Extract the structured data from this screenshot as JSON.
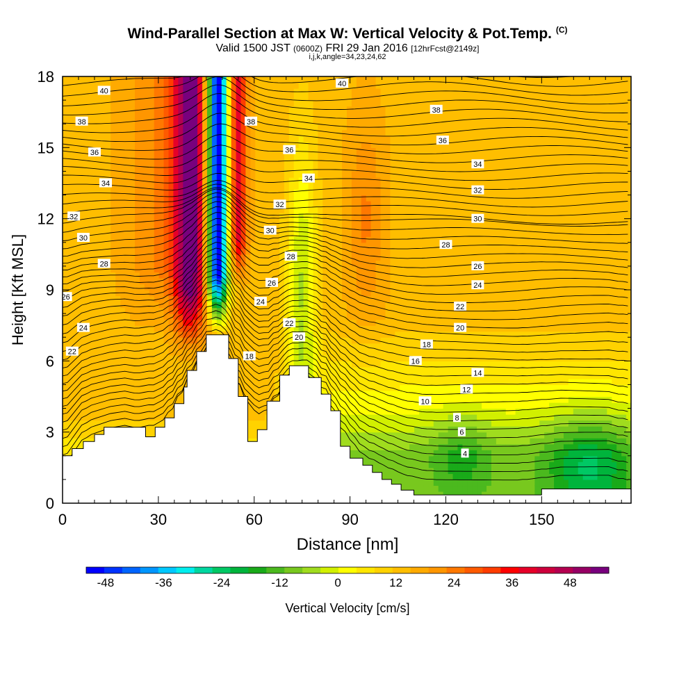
{
  "header": {
    "title": "Wind-Parallel Section at Max W: Vertical Velocity & Pot.Temp.",
    "title_mark": "(C)",
    "valid_prefix": "Valid 1500 JST",
    "valid_utc": "(0600Z)",
    "valid_date": "FRI 29 Jan 2016",
    "forecast": "[12hrFcst@2149z]",
    "section_params": "i,j,k,angle=34,23,24,62"
  },
  "chart_data": {
    "type": "heatmap",
    "xlabel": "Distance [nm]",
    "ylabel": "Height [Kft MSL]",
    "xlim": [
      0,
      178
    ],
    "ylim": [
      0,
      18
    ],
    "xticks": [
      "0",
      "30",
      "60",
      "90",
      "120",
      "150"
    ],
    "xtick_values": [
      0,
      30,
      60,
      90,
      120,
      150
    ],
    "yticks": [
      "0",
      "3",
      "6",
      "9",
      "12",
      "15",
      "18"
    ],
    "ytick_values": [
      0,
      3,
      6,
      9,
      12,
      15,
      18
    ],
    "colorbar": {
      "label": "Vertical Velocity [cm/s]",
      "tick_labels": [
        "-48",
        "-36",
        "-24",
        "-12",
        "0",
        "12",
        "24",
        "36",
        "48"
      ],
      "tick_values": [
        -48,
        -36,
        -24,
        -12,
        0,
        12,
        24,
        36,
        48
      ],
      "range": [
        -52,
        56
      ],
      "colors": [
        "#0000ff",
        "#0032ff",
        "#0064ff",
        "#0096ff",
        "#00c8ff",
        "#00eeee",
        "#00d7a0",
        "#00c864",
        "#00b43c",
        "#19aa19",
        "#4bb91e",
        "#78c81e",
        "#a0dc1e",
        "#d2f000",
        "#ffff00",
        "#ffe600",
        "#ffd200",
        "#ffbe00",
        "#ffaa00",
        "#ff9600",
        "#ff7800",
        "#ff5a00",
        "#ff3c00",
        "#ff0000",
        "#e60028",
        "#cd003c",
        "#b40050",
        "#960064",
        "#78007d"
      ]
    },
    "isentrope_labels": {
      "levels_K": [
        4,
        6,
        8,
        10,
        12,
        14,
        16,
        18,
        20,
        22,
        24,
        26,
        28,
        30,
        32,
        34,
        36,
        38,
        40
      ],
      "placements": [
        {
          "text": "40",
          "x": 13,
          "y": 17.4
        },
        {
          "text": "38",
          "x": 6,
          "y": 16.1
        },
        {
          "text": "36",
          "x": 10,
          "y": 14.8
        },
        {
          "text": "34",
          "x": 13.5,
          "y": 13.5
        },
        {
          "text": "32",
          "x": 3.5,
          "y": 12.1
        },
        {
          "text": "30",
          "x": 6.5,
          "y": 11.2
        },
        {
          "text": "28",
          "x": 13,
          "y": 10.1
        },
        {
          "text": "26",
          "x": 1,
          "y": 8.7
        },
        {
          "text": "24",
          "x": 6.5,
          "y": 7.4
        },
        {
          "text": "22",
          "x": 3,
          "y": 6.4
        },
        {
          "text": "38",
          "x": 59,
          "y": 16.1
        },
        {
          "text": "36",
          "x": 71,
          "y": 14.9
        },
        {
          "text": "34",
          "x": 77,
          "y": 13.7
        },
        {
          "text": "32",
          "x": 68,
          "y": 12.6
        },
        {
          "text": "30",
          "x": 65,
          "y": 11.5
        },
        {
          "text": "28",
          "x": 71.5,
          "y": 10.4
        },
        {
          "text": "26",
          "x": 65.5,
          "y": 9.3
        },
        {
          "text": "24",
          "x": 62,
          "y": 8.5
        },
        {
          "text": "22",
          "x": 71,
          "y": 7.6
        },
        {
          "text": "20",
          "x": 74,
          "y": 7.0
        },
        {
          "text": "18",
          "x": 58.5,
          "y": 6.2
        },
        {
          "text": "40",
          "x": 87.5,
          "y": 17.7
        },
        {
          "text": "38",
          "x": 117,
          "y": 16.6
        },
        {
          "text": "36",
          "x": 119,
          "y": 15.3
        },
        {
          "text": "34",
          "x": 130,
          "y": 14.3
        },
        {
          "text": "32",
          "x": 130,
          "y": 13.2
        },
        {
          "text": "30",
          "x": 130,
          "y": 12.0
        },
        {
          "text": "28",
          "x": 120,
          "y": 10.9
        },
        {
          "text": "26",
          "x": 130,
          "y": 10.0
        },
        {
          "text": "24",
          "x": 130,
          "y": 9.2
        },
        {
          "text": "22",
          "x": 124.5,
          "y": 8.3
        },
        {
          "text": "20",
          "x": 124.5,
          "y": 7.4
        },
        {
          "text": "18",
          "x": 114,
          "y": 6.7
        },
        {
          "text": "16",
          "x": 110.5,
          "y": 6.0
        },
        {
          "text": "14",
          "x": 130,
          "y": 5.5
        },
        {
          "text": "12",
          "x": 126.5,
          "y": 4.8
        },
        {
          "text": "10",
          "x": 113.5,
          "y": 4.3
        },
        {
          "text": "8",
          "x": 123.5,
          "y": 3.6
        },
        {
          "text": "6",
          "x": 125,
          "y": 3.0
        },
        {
          "text": "4",
          "x": 126,
          "y": 2.1
        }
      ]
    },
    "terrain": [
      [
        0,
        2
      ],
      [
        3,
        2
      ],
      [
        3,
        2.3
      ],
      [
        6.5,
        2.3
      ],
      [
        6.5,
        2.6
      ],
      [
        10,
        2.6
      ],
      [
        10,
        2.9
      ],
      [
        13,
        2.9
      ],
      [
        13,
        3.2
      ],
      [
        26,
        3.2
      ],
      [
        26,
        2.8
      ],
      [
        29,
        2.8
      ],
      [
        29,
        3.2
      ],
      [
        32,
        3.2
      ],
      [
        32,
        3.6
      ],
      [
        35,
        3.6
      ],
      [
        35,
        4.2
      ],
      [
        38,
        4.2
      ],
      [
        38,
        4.9
      ],
      [
        39,
        4.9
      ],
      [
        39,
        5.6
      ],
      [
        42,
        5.6
      ],
      [
        42,
        6.4
      ],
      [
        45,
        6.4
      ],
      [
        45,
        7.1
      ],
      [
        52,
        7.1
      ],
      [
        52,
        6.1
      ],
      [
        55,
        6.1
      ],
      [
        55,
        4.5
      ],
      [
        58,
        4.5
      ],
      [
        58,
        2.6
      ],
      [
        61,
        2.6
      ],
      [
        61,
        3.1
      ],
      [
        64,
        3.1
      ],
      [
        64,
        4.3
      ],
      [
        68,
        4.3
      ],
      [
        68,
        5.4
      ],
      [
        71,
        5.4
      ],
      [
        71,
        5.8
      ],
      [
        77,
        5.8
      ],
      [
        77,
        5.3
      ],
      [
        81,
        5.3
      ],
      [
        81,
        4.6
      ],
      [
        84,
        4.6
      ],
      [
        84,
        3.9
      ],
      [
        87,
        3.9
      ],
      [
        87,
        2.4
      ],
      [
        90,
        2.4
      ],
      [
        90,
        1.9
      ],
      [
        94,
        1.9
      ],
      [
        94,
        1.6
      ],
      [
        97,
        1.6
      ],
      [
        97,
        1.3
      ],
      [
        100,
        1.3
      ],
      [
        100,
        1.0
      ],
      [
        103,
        1.0
      ],
      [
        103,
        0.8
      ],
      [
        106,
        0.8
      ],
      [
        106,
        0.55
      ],
      [
        110,
        0.55
      ],
      [
        110,
        0.35
      ],
      [
        150,
        0.35
      ],
      [
        150,
        0.6
      ],
      [
        178,
        0.6
      ],
      [
        178,
        0
      ]
    ]
  }
}
